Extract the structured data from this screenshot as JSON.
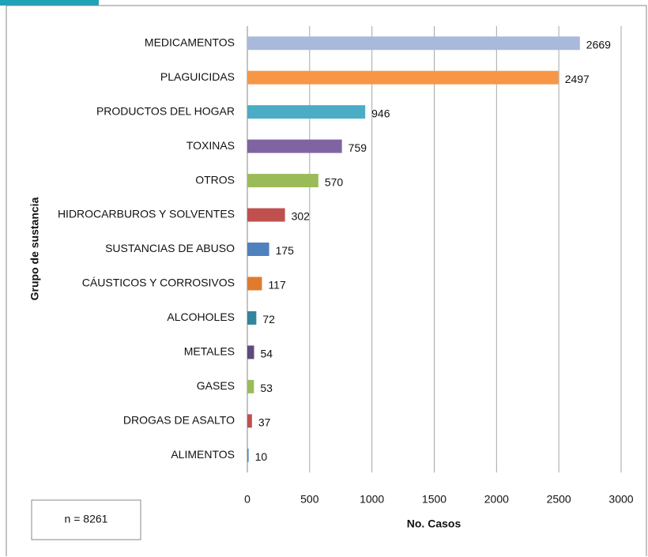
{
  "chart_data": {
    "type": "barh",
    "categories": [
      "MEDICAMENTOS",
      "PLAGUICIDAS",
      "PRODUCTOS DEL HOGAR",
      "TOXINAS",
      "OTROS",
      "HIDROCARBUROS Y SOLVENTES",
      "SUSTANCIAS DE ABUSO",
      "CÁUSTICOS Y CORROSIVOS",
      "ALCOHOLES",
      "METALES",
      "GASES",
      "DROGAS DE ASALTO",
      "ALIMENTOS"
    ],
    "values": [
      2669,
      2497,
      946,
      759,
      570,
      302,
      175,
      117,
      72,
      54,
      53,
      37,
      10
    ],
    "colors": [
      "#a9b9dc",
      "#f79646",
      "#4bacc6",
      "#8064a2",
      "#9bbb59",
      "#c0504d",
      "#4f81bd",
      "#e07b2e",
      "#31859c",
      "#604a7b",
      "#9bbb59",
      "#c0504d",
      "#4f81bd"
    ],
    "xlabel": "No. Casos",
    "ylabel": "Grupo de sustancia",
    "annotation": "n = 8261",
    "xlim": [
      0,
      3000
    ],
    "xticks": [
      0,
      500,
      1000,
      1500,
      2000,
      2500,
      3000
    ],
    "grid": true
  }
}
